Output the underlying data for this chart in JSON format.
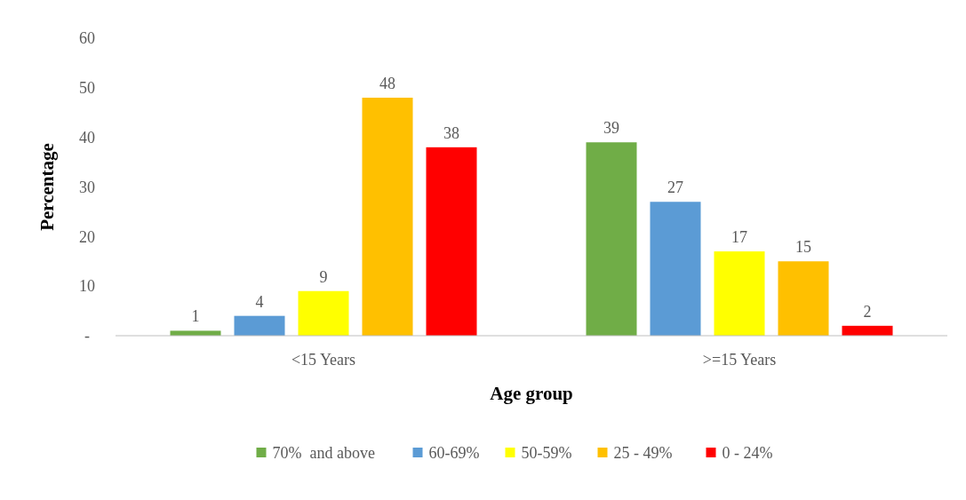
{
  "chart_data": {
    "type": "bar",
    "xlabel": "Age group",
    "ylabel": "Percentage",
    "categories": [
      "<15 Years",
      ">=15 Years"
    ],
    "series": [
      {
        "name": "70%  and above",
        "color": "#70ad47",
        "values": [
          1,
          39
        ]
      },
      {
        "name": "60-69%",
        "color": "#5b9bd5",
        "values": [
          4,
          27
        ]
      },
      {
        "name": "50-59%",
        "color": "#ffff00",
        "values": [
          9,
          17
        ]
      },
      {
        "name": "25 - 49%",
        "color": "#ffc000",
        "values": [
          48,
          15
        ]
      },
      {
        "name": "0 - 24%",
        "color": "#ff0000",
        "values": [
          38,
          2
        ]
      }
    ],
    "ylim": [
      0,
      60
    ],
    "yticks": [
      {
        "value": 0,
        "label": "-"
      },
      10,
      20,
      30,
      40,
      50,
      60
    ],
    "data_labels": true,
    "grid": false,
    "legend": "bottom"
  }
}
